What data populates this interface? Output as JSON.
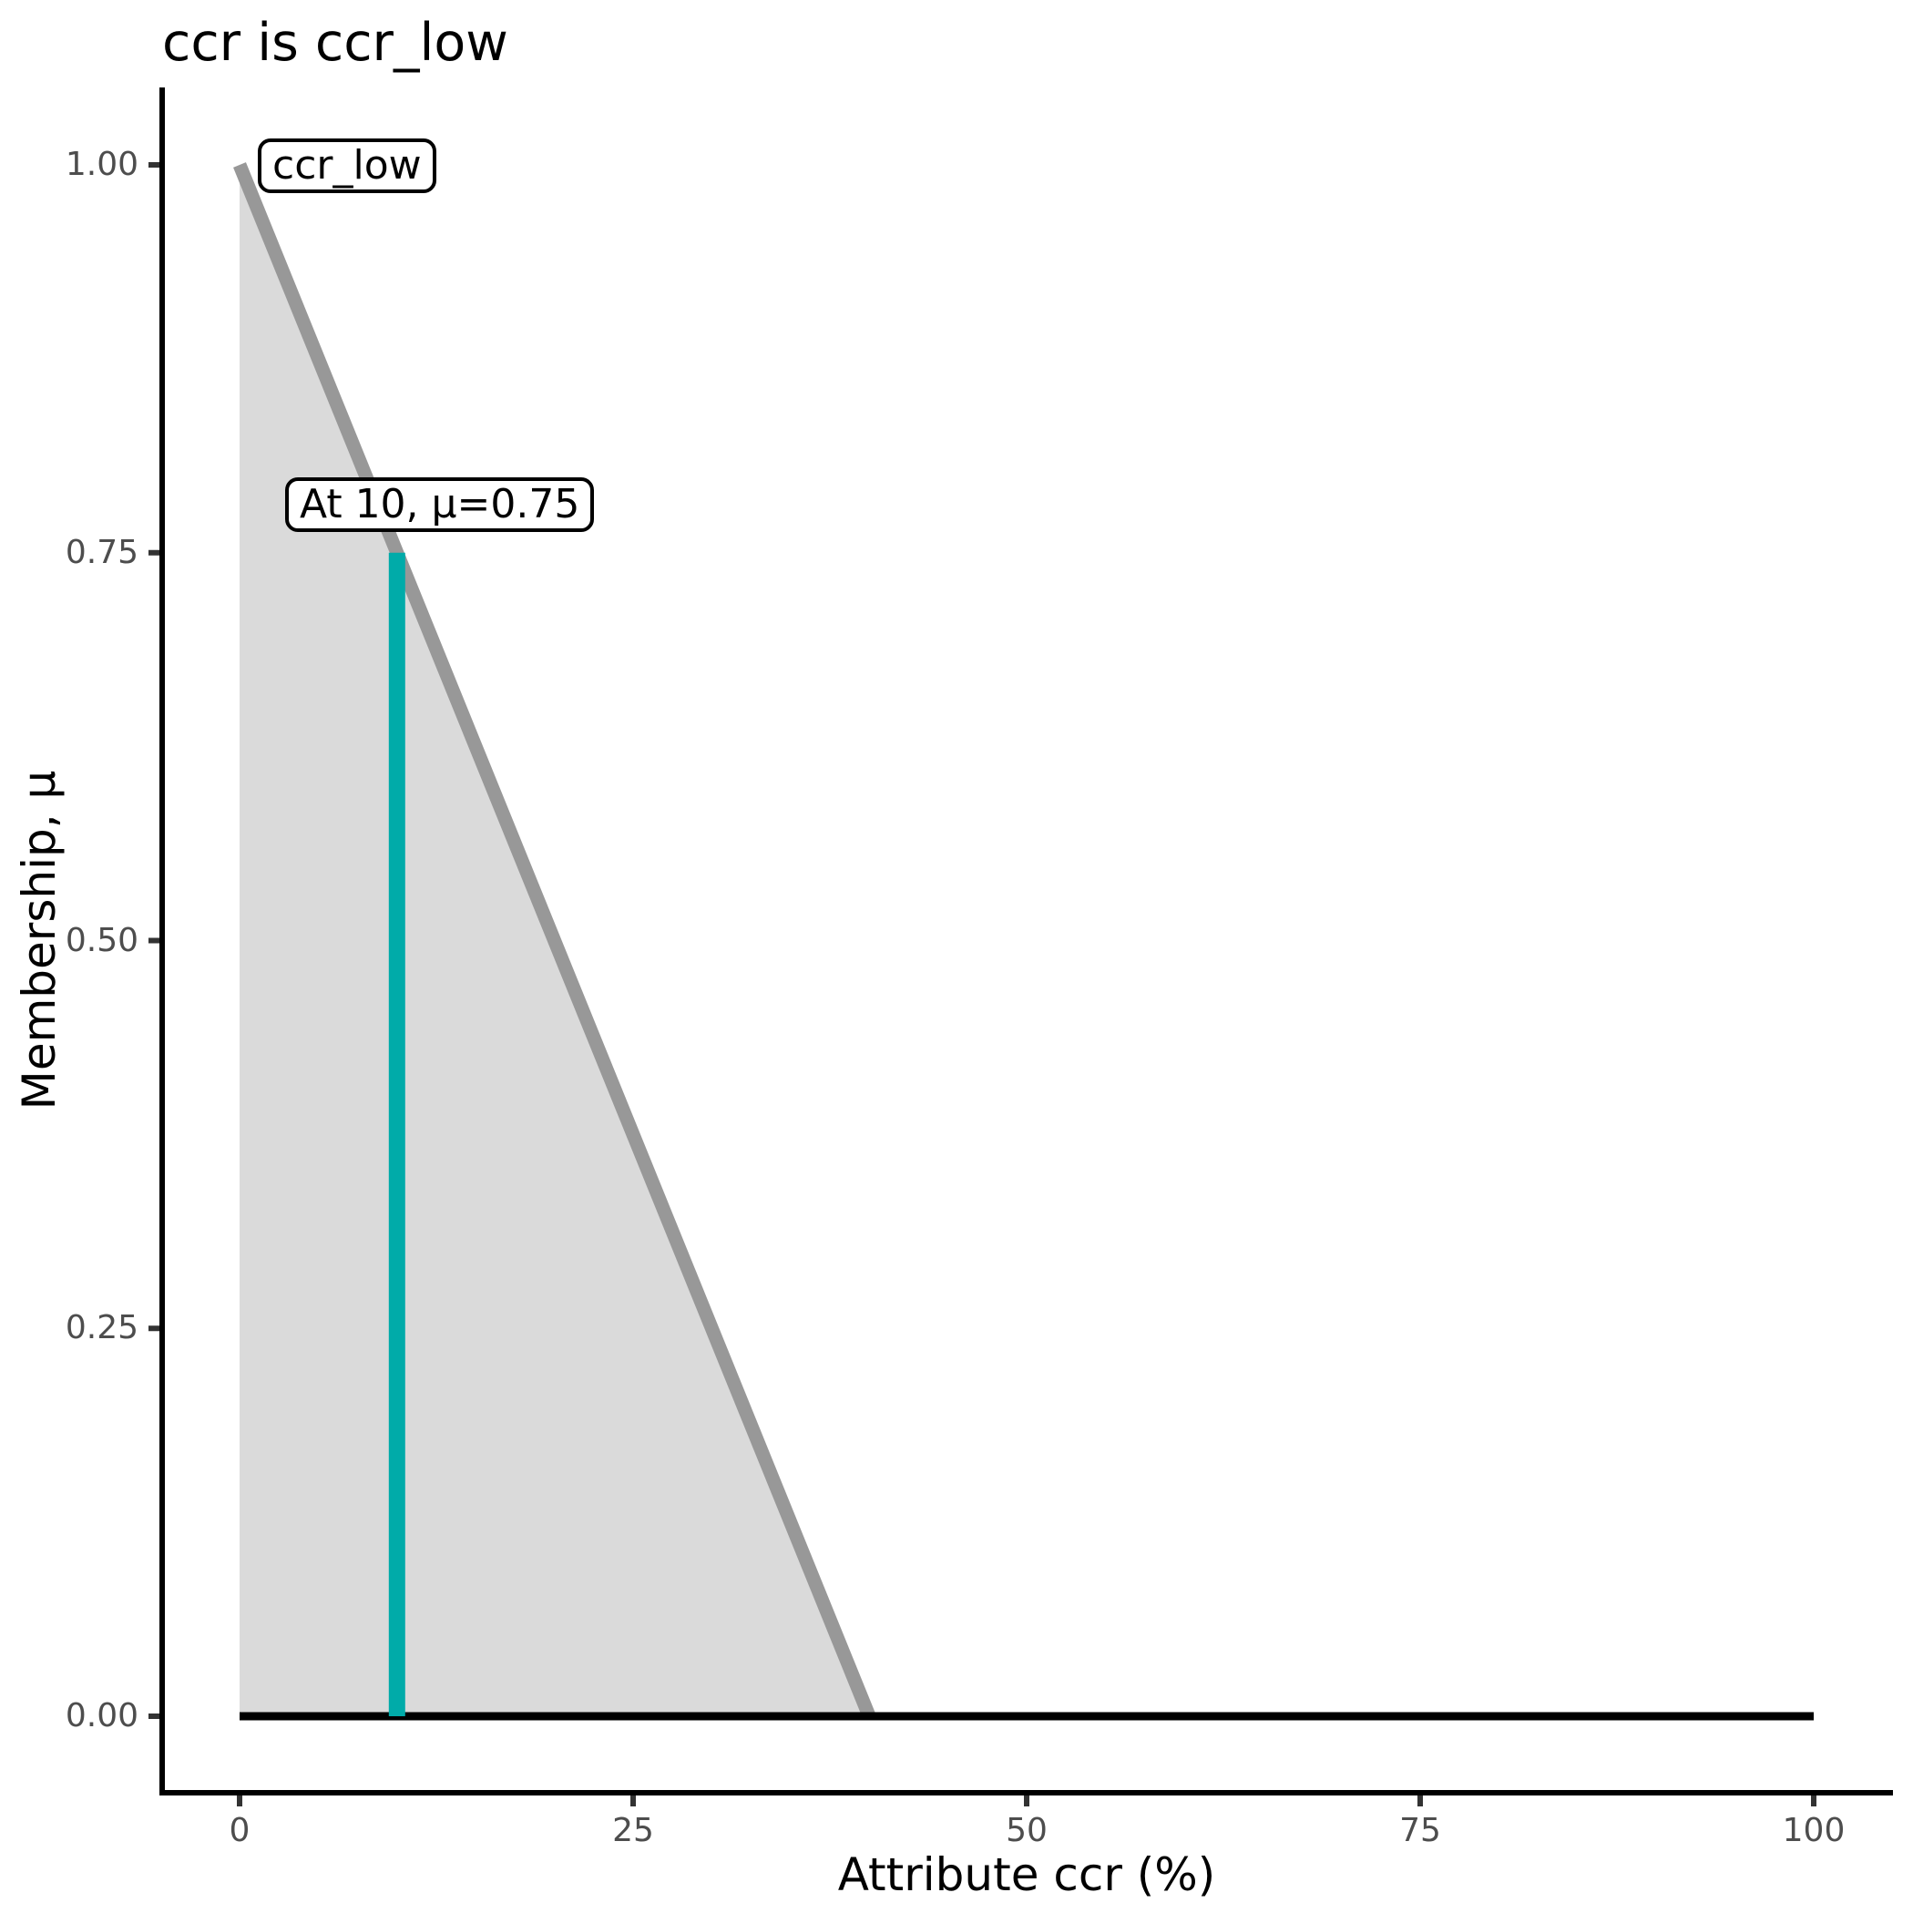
{
  "chart_data": {
    "type": "area",
    "title": "ccr is ccr_low",
    "xlabel": "Attribute ccr (%)",
    "ylabel": "Membership, μ",
    "xlim": [
      0,
      100
    ],
    "ylim": [
      0,
      1
    ],
    "grid": false,
    "legend": false,
    "x_ticks": {
      "values": [
        0,
        25,
        50,
        75,
        100
      ],
      "labels": [
        "0",
        "25",
        "50",
        "75",
        "100"
      ]
    },
    "y_ticks": {
      "values": [
        0,
        0.25,
        0.5,
        0.75,
        1
      ],
      "labels": [
        "0.00",
        "0.25",
        "0.50",
        "0.75",
        "1.00"
      ]
    },
    "series": [
      {
        "name": "ccr_low membership function",
        "type": "area",
        "points": [
          [
            0,
            1
          ],
          [
            40,
            0
          ]
        ],
        "line_color": "#989898",
        "fill_color": "#DADADA",
        "line_width": 15
      },
      {
        "name": "zero membership baseline",
        "type": "line",
        "points": [
          [
            0,
            0
          ],
          [
            100,
            0
          ]
        ],
        "line_color": "#000000",
        "line_width": 9
      },
      {
        "name": "evaluation at ccr=10",
        "type": "vline",
        "x": 10,
        "y_from": 0,
        "y_to": 0.75,
        "line_color": "#00ABA9",
        "line_width": 18
      }
    ],
    "annotations": [
      {
        "text": "ccr_low",
        "x": 1.2,
        "y": 1.0
      },
      {
        "text": "At 10, μ=0.75",
        "x": 10,
        "y": 0.78
      }
    ],
    "colors": {
      "axis": "#000000",
      "tick": "#333333",
      "tick_label": "#4D4D4D",
      "text": "#000000",
      "label_box_bg": "#FFFFFF",
      "label_box_border": "#000000"
    }
  }
}
